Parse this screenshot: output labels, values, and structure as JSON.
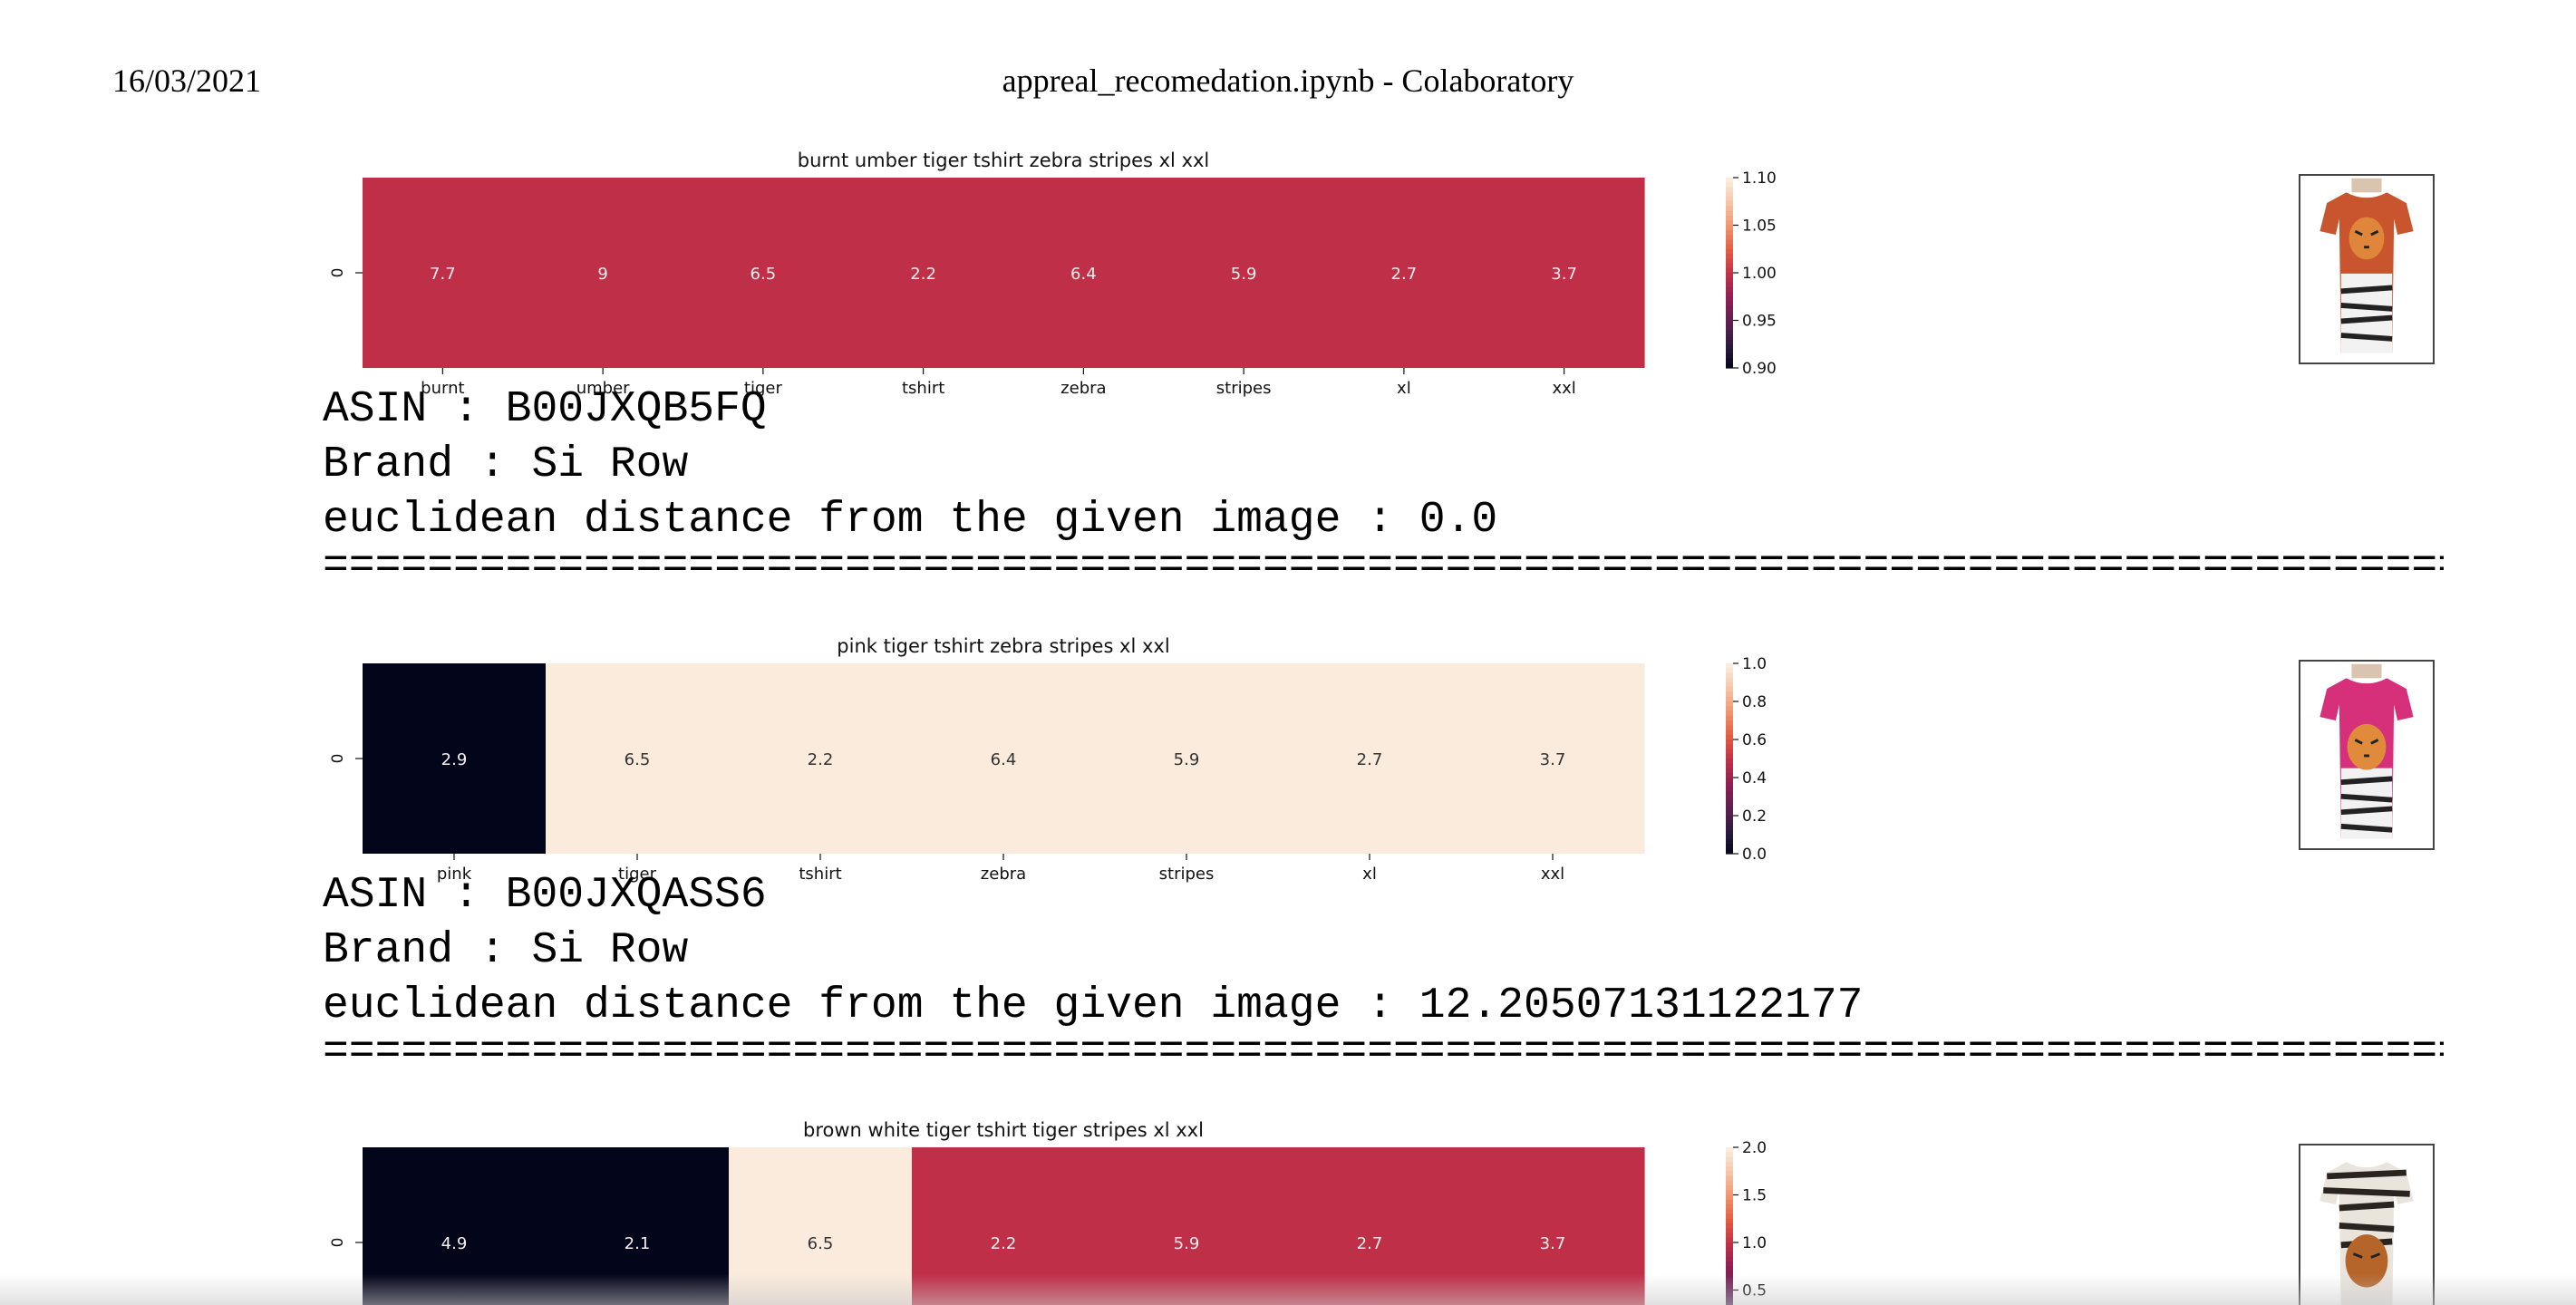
{
  "header": {
    "date": "16/03/2021",
    "title": "appreal_recomedation.ipynb - Colaboratory"
  },
  "results": [
    {
      "asin_line": "ASIN : B00JXQB5FQ",
      "brand_line": "Brand : Si Row",
      "distance_line": "euclidean distance from the given image : 0.0",
      "separator": "================================================================================================",
      "thumb_icon": "tiger-tshirt-orange-thumbnail",
      "chart_data": {
        "type": "heatmap",
        "title": "burnt umber tiger tshirt zebra stripes xl  xxl",
        "row_label": "0",
        "categories": [
          "burnt",
          "umber",
          "tiger",
          "tshirt",
          "zebra",
          "stripes",
          "xl",
          "xxl"
        ],
        "values": [
          7.7,
          9,
          6.5,
          2.2,
          6.4,
          5.9,
          2.7,
          3.7
        ],
        "annotations": [
          "7.7",
          "9",
          "6.5",
          "2.2",
          "6.4",
          "5.9",
          "2.7",
          "3.7"
        ],
        "color_values": [
          1,
          1,
          1,
          1,
          1,
          1,
          1,
          1
        ],
        "colorbar": {
          "range": [
            0.9,
            1.1
          ],
          "ticks": [
            "1.10",
            "1.05",
            "1.00",
            "0.95",
            "0.90"
          ],
          "colormap": "rocket"
        }
      }
    },
    {
      "asin_line": "ASIN : B00JXQASS6",
      "brand_line": "Brand : Si Row",
      "distance_line": "euclidean distance from the given image : 12.20507131122177",
      "separator": "================================================================================================",
      "thumb_icon": "tiger-tshirt-pink-thumbnail",
      "chart_data": {
        "type": "heatmap",
        "title": "pink tiger tshirt zebra stripes xl  xxl",
        "row_label": "0",
        "categories": [
          "pink",
          "tiger",
          "tshirt",
          "zebra",
          "stripes",
          "xl",
          "xxl"
        ],
        "values": [
          2.9,
          6.5,
          2.2,
          6.4,
          5.9,
          2.7,
          3.7
        ],
        "annotations": [
          "2.9",
          "6.5",
          "2.2",
          "6.4",
          "5.9",
          "2.7",
          "3.7"
        ],
        "color_values": [
          0,
          1,
          1,
          1,
          1,
          1,
          1
        ],
        "colorbar": {
          "range": [
            0,
            1
          ],
          "ticks": [
            "1.0",
            "0.8",
            "0.6",
            "0.4",
            "0.2",
            "0.0"
          ],
          "colormap": "rocket"
        }
      }
    },
    {
      "asin_line": "",
      "brand_line": "",
      "distance_line": "",
      "separator": "",
      "thumb_icon": "tiger-tshirt-zebra-thumbnail",
      "chart_data": {
        "type": "heatmap",
        "title": "brown  white tiger tshirt tiger stripes xl  xxl",
        "row_label": "0",
        "categories": [
          "",
          "",
          "",
          "",
          "",
          "",
          ""
        ],
        "values": [
          4.9,
          2.1,
          6.5,
          2.2,
          5.9,
          2.7,
          3.7
        ],
        "annotations": [
          "4.9",
          "2.1",
          "6.5",
          "2.2",
          "5.9",
          "2.7",
          "3.7"
        ],
        "color_values": [
          0,
          0,
          2,
          1,
          1,
          1,
          1
        ],
        "colorbar": {
          "range": [
            0,
            2
          ],
          "ticks": [
            "2.0",
            "1.5",
            "1.0",
            "0.5"
          ],
          "colormap": "rocket"
        }
      }
    }
  ]
}
